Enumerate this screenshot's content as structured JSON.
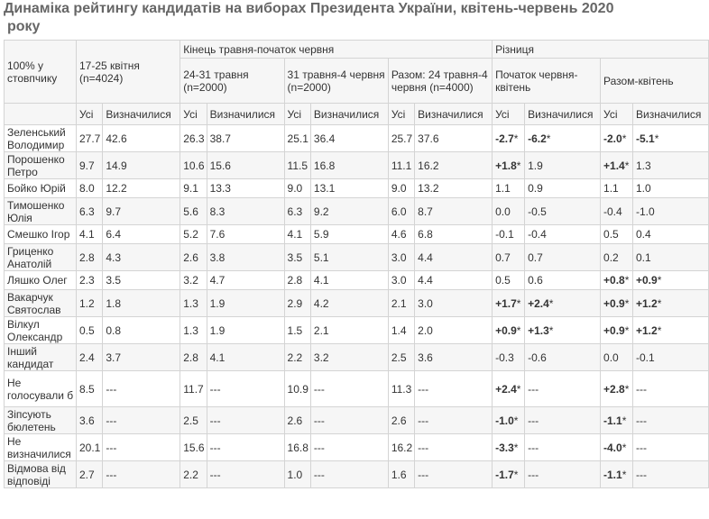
{
  "title": {
    "line1": "Динаміка рейтингу кандидатів на виборах Президента України, квітень-червень 2020",
    "line2": "року"
  },
  "header": {
    "corner": "100% у стовпчику",
    "period1": "17-25 квітня (n=4024)",
    "group_end_may": "Кінець травня-початок червня",
    "group_diff": "Різниця",
    "p2": "24-31 травня (n=2000)",
    "p3": "31 травня-4 червня (n=2000)",
    "p4": "Разом: 24 травня-4 червня (n=4000)",
    "d1": "Початок червня-квітень",
    "d2": "Разом-квітень",
    "all": "Усі",
    "decided": "Визначилися"
  },
  "rows": [
    {
      "name": "Зеленський Володимир",
      "v": [
        "27.7",
        "42.6",
        "26.3",
        "38.7",
        "25.1",
        "36.4",
        "25.7",
        "37.6"
      ],
      "d": [
        {
          "t": "-2.7",
          "b": true,
          "s": true
        },
        {
          "t": "-6.2",
          "b": true,
          "s": true
        },
        {
          "t": "-2.0",
          "b": true,
          "s": true
        },
        {
          "t": "-5.1",
          "b": true,
          "s": true
        }
      ]
    },
    {
      "name": "Порошенко Петро",
      "v": [
        "9.7",
        "14.9",
        "10.6",
        "15.6",
        "11.5",
        "16.8",
        "11.1",
        "16.2"
      ],
      "d": [
        {
          "t": "+1.8",
          "b": true,
          "s": true
        },
        {
          "t": "1.9",
          "b": false,
          "s": false
        },
        {
          "t": "+1.4",
          "b": true,
          "s": true
        },
        {
          "t": "1.3",
          "b": false,
          "s": false
        }
      ]
    },
    {
      "name": "Бойко Юрій",
      "v": [
        "8.0",
        "12.2",
        "9.1",
        "13.3",
        "9.0",
        "13.1",
        "9.0",
        "13.2"
      ],
      "d": [
        {
          "t": "1.1",
          "b": false,
          "s": false
        },
        {
          "t": "0.9",
          "b": false,
          "s": false
        },
        {
          "t": "1.1",
          "b": false,
          "s": false
        },
        {
          "t": "1.0",
          "b": false,
          "s": false
        }
      ]
    },
    {
      "name": "Тимошенко Юлія",
      "v": [
        "6.3",
        "9.7",
        "5.6",
        "8.3",
        "6.3",
        "9.2",
        "6.0",
        "8.7"
      ],
      "d": [
        {
          "t": "0.0",
          "b": false,
          "s": false
        },
        {
          "t": "-0.5",
          "b": false,
          "s": false
        },
        {
          "t": "-0.4",
          "b": false,
          "s": false
        },
        {
          "t": "-1.0",
          "b": false,
          "s": false
        }
      ]
    },
    {
      "name": "Смешко Ігор",
      "v": [
        "4.1",
        "6.4",
        "5.2",
        "7.6",
        "4.1",
        "5.9",
        "4.6",
        "6.8"
      ],
      "d": [
        {
          "t": "-0.1",
          "b": false,
          "s": false
        },
        {
          "t": "-0.4",
          "b": false,
          "s": false
        },
        {
          "t": "0.5",
          "b": false,
          "s": false
        },
        {
          "t": "0.4",
          "b": false,
          "s": false
        }
      ]
    },
    {
      "name": "Гриценко Анатолій",
      "v": [
        "2.8",
        "4.3",
        "2.6",
        "3.8",
        "3.5",
        "5.1",
        "3.0",
        "4.4"
      ],
      "d": [
        {
          "t": "0.7",
          "b": false,
          "s": false
        },
        {
          "t": "0.7",
          "b": false,
          "s": false
        },
        {
          "t": "0.2",
          "b": false,
          "s": false
        },
        {
          "t": "0.1",
          "b": false,
          "s": false
        }
      ]
    },
    {
      "name": "Ляшко Олег",
      "v": [
        "2.3",
        "3.5",
        "3.2",
        "4.7",
        "2.8",
        "4.1",
        "3.0",
        "4.4"
      ],
      "d": [
        {
          "t": "0.5",
          "b": false,
          "s": false
        },
        {
          "t": "0.6",
          "b": false,
          "s": false
        },
        {
          "t": "+0.8",
          "b": true,
          "s": true
        },
        {
          "t": "+0.9",
          "b": true,
          "s": true
        }
      ]
    },
    {
      "name": "Вакарчук Святослав",
      "v": [
        "1.2",
        "1.8",
        "1.3",
        "1.9",
        "2.9",
        "4.2",
        "2.1",
        "3.0"
      ],
      "d": [
        {
          "t": "+1.7",
          "b": true,
          "s": true
        },
        {
          "t": "+2.4",
          "b": true,
          "s": true
        },
        {
          "t": "+0.9",
          "b": true,
          "s": true
        },
        {
          "t": "+1.2",
          "b": true,
          "s": true
        }
      ]
    },
    {
      "name": "Вілкул Олександр",
      "v": [
        "0.5",
        "0.8",
        "1.3",
        "1.9",
        "1.5",
        "2.1",
        "1.4",
        "2.0"
      ],
      "d": [
        {
          "t": "+0.9",
          "b": true,
          "s": true
        },
        {
          "t": "+1.3",
          "b": true,
          "s": true
        },
        {
          "t": "+0.9",
          "b": true,
          "s": true
        },
        {
          "t": "+1.2",
          "b": true,
          "s": true
        }
      ]
    },
    {
      "name": "Інший кандидат",
      "v": [
        "2.4",
        "3.7",
        "2.8",
        "4.1",
        "2.2",
        "3.2",
        "2.5",
        "3.6"
      ],
      "d": [
        {
          "t": "-0.3",
          "b": false,
          "s": false
        },
        {
          "t": "-0.6",
          "b": false,
          "s": false
        },
        {
          "t": "0.0",
          "b": false,
          "s": false
        },
        {
          "t": "-0.1",
          "b": false,
          "s": false
        }
      ]
    },
    {
      "name": "Не голосували б",
      "v": [
        "8.5",
        "---",
        "11.7",
        "---",
        "10.9",
        "---",
        "11.3",
        "---"
      ],
      "d": [
        {
          "t": "+2.4",
          "b": true,
          "s": true
        },
        {
          "t": "---",
          "b": false,
          "s": false
        },
        {
          "t": "+2.8",
          "b": true,
          "s": true
        },
        {
          "t": "---",
          "b": false,
          "s": false
        }
      ]
    },
    {
      "name": "Зіпсують бюлетень",
      "v": [
        "3.6",
        "---",
        "2.5",
        "---",
        "2.6",
        "---",
        "2.6",
        "---"
      ],
      "d": [
        {
          "t": "-1.0",
          "b": true,
          "s": true
        },
        {
          "t": "---",
          "b": false,
          "s": false
        },
        {
          "t": "-1.1",
          "b": true,
          "s": true
        },
        {
          "t": "---",
          "b": false,
          "s": false
        }
      ]
    },
    {
      "name": "Не визначилися",
      "v": [
        "20.1",
        "---",
        "15.6",
        "---",
        "16.8",
        "---",
        "16.2",
        "---"
      ],
      "d": [
        {
          "t": "-3.3",
          "b": true,
          "s": true
        },
        {
          "t": "---",
          "b": false,
          "s": false
        },
        {
          "t": "-4.0",
          "b": true,
          "s": true
        },
        {
          "t": "---",
          "b": false,
          "s": false
        }
      ]
    },
    {
      "name": "Відмова від відповіді",
      "v": [
        "2.7",
        "---",
        "2.2",
        "---",
        "1.0",
        "---",
        "1.6",
        "---"
      ],
      "d": [
        {
          "t": "-1.7",
          "b": true,
          "s": true
        },
        {
          "t": "---",
          "b": false,
          "s": false
        },
        {
          "t": "-1.1",
          "b": true,
          "s": true
        },
        {
          "t": "---",
          "b": false,
          "s": false
        }
      ]
    }
  ],
  "star_symbol": "*"
}
